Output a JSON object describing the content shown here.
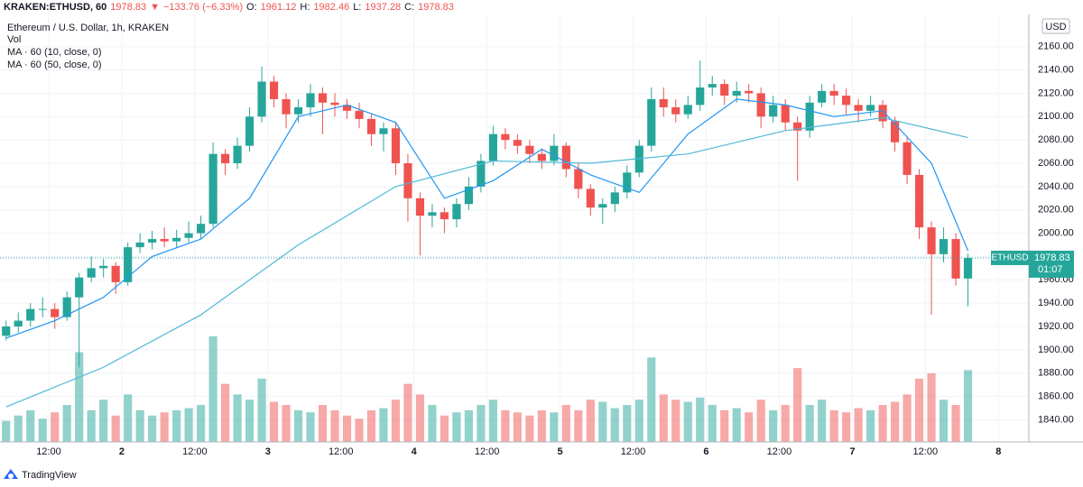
{
  "header": {
    "symbol": "KRAKEN:ETHUSD, 60",
    "arrow": "▼",
    "change": "−133.76 (−6.33%)",
    "o_label": "O:",
    "h_label": "H:",
    "l_label": "L:",
    "c_label": "C:"
  },
  "chart_data": {
    "type": "candlestick",
    "title": "Ethereum / U.S. Dollar, 1h, KRAKEN",
    "x": [
      0,
      2,
      4,
      6,
      8,
      10,
      12,
      14,
      16,
      18,
      20,
      22,
      24,
      26,
      28,
      30,
      32,
      34,
      36,
      38,
      40,
      42,
      44,
      46,
      48,
      50,
      52,
      54,
      56,
      58,
      60,
      62,
      64,
      66,
      68,
      70,
      72,
      74,
      76,
      78,
      80,
      82,
      84,
      86,
      88,
      90,
      92,
      94,
      96,
      98,
      100,
      102,
      104,
      106,
      108,
      110,
      112,
      114,
      116,
      118,
      120,
      122,
      124,
      126,
      128,
      130,
      132,
      134,
      136,
      138,
      140,
      142,
      144,
      146,
      148,
      150,
      152,
      154,
      156,
      158
    ],
    "open": [
      1912,
      1920,
      1925,
      1935,
      1935,
      1928,
      1945,
      1962,
      1970,
      1972,
      1958,
      1988,
      1992,
      1995,
      1993,
      1996,
      2000,
      2008,
      2068,
      2060,
      2075,
      2100,
      2130,
      2115,
      2102,
      2108,
      2120,
      2112,
      2110,
      2105,
      2098,
      2085,
      2090,
      2060,
      2030,
      2015,
      2018,
      2012,
      2025,
      2040,
      2062,
      2085,
      2080,
      2075,
      2068,
      2062,
      2075,
      2055,
      2038,
      2022,
      2025,
      2035,
      2052,
      2075,
      2115,
      2108,
      2102,
      2110,
      2125,
      2128,
      2118,
      2122,
      2120,
      2100,
      2110,
      2095,
      2088,
      2112,
      2122,
      2118,
      2110,
      2105,
      2110,
      2096,
      2078,
      2050,
      2005,
      1982,
      1995,
      1961.12
    ],
    "high": [
      1925,
      1932,
      1940,
      1945,
      1940,
      1950,
      1966,
      1980,
      1978,
      1975,
      1992,
      2000,
      2002,
      2005,
      2003,
      2010,
      2015,
      2078,
      2072,
      2082,
      2108,
      2143,
      2135,
      2120,
      2115,
      2128,
      2125,
      2120,
      2115,
      2112,
      2102,
      2095,
      2095,
      2068,
      2035,
      2025,
      2022,
      2030,
      2048,
      2068,
      2092,
      2090,
      2085,
      2080,
      2072,
      2085,
      2078,
      2060,
      2042,
      2030,
      2040,
      2058,
      2080,
      2125,
      2125,
      2115,
      2118,
      2148,
      2135,
      2132,
      2130,
      2128,
      2125,
      2118,
      2115,
      2100,
      2118,
      2128,
      2128,
      2124,
      2115,
      2118,
      2114,
      2100,
      2082,
      2055,
      2010,
      2005,
      2000,
      1982.46
    ],
    "low": [
      1908,
      1915,
      1920,
      1928,
      1918,
      1925,
      1885,
      1958,
      1962,
      1948,
      1955,
      1983,
      1986,
      1988,
      1988,
      1992,
      1995,
      2005,
      2050,
      2055,
      2070,
      2095,
      2108,
      2090,
      2095,
      2100,
      2085,
      2100,
      2098,
      2090,
      2075,
      2070,
      2050,
      2010,
      1981,
      2005,
      2000,
      2005,
      2020,
      2035,
      2058,
      2072,
      2068,
      2060,
      2055,
      2058,
      2048,
      2030,
      2015,
      2008,
      2018,
      2030,
      2048,
      2070,
      2100,
      2095,
      2098,
      2105,
      2118,
      2110,
      2112,
      2112,
      2090,
      2095,
      2088,
      2045,
      2082,
      2108,
      2110,
      2102,
      2095,
      2100,
      2090,
      2070,
      2042,
      1995,
      1930,
      1975,
      1955,
      1937.28
    ],
    "close": [
      1920,
      1925,
      1935,
      1935,
      1928,
      1945,
      1962,
      1970,
      1972,
      1958,
      1988,
      1992,
      1995,
      1993,
      1996,
      2000,
      2008,
      2068,
      2060,
      2075,
      2100,
      2130,
      2115,
      2102,
      2108,
      2120,
      2112,
      2110,
      2105,
      2098,
      2085,
      2090,
      2060,
      2030,
      2015,
      2018,
      2012,
      2025,
      2040,
      2062,
      2085,
      2080,
      2075,
      2068,
      2062,
      2075,
      2055,
      2038,
      2022,
      2025,
      2035,
      2052,
      2075,
      2115,
      2108,
      2102,
      2110,
      2125,
      2128,
      2118,
      2122,
      2120,
      2100,
      2110,
      2095,
      2088,
      2112,
      2122,
      2118,
      2110,
      2105,
      2110,
      2096,
      2078,
      2050,
      2005,
      1982,
      1995,
      1961.12,
      1978.83
    ],
    "up_color": "#26a69a",
    "down_color": "#ef5350",
    "volume": {
      "name": "Vol",
      "ylim": [
        0,
        400
      ],
      "values": [
        20,
        25,
        30,
        22,
        28,
        35,
        85,
        30,
        40,
        25,
        45,
        30,
        25,
        28,
        30,
        32,
        35,
        100,
        55,
        45,
        40,
        60,
        38,
        35,
        30,
        28,
        35,
        30,
        25,
        22,
        30,
        32,
        40,
        55,
        45,
        35,
        25,
        28,
        30,
        35,
        40,
        30,
        28,
        25,
        30,
        28,
        35,
        30,
        40,
        38,
        32,
        35,
        40,
        80,
        45,
        40,
        38,
        42,
        35,
        30,
        32,
        28,
        40,
        30,
        35,
        70,
        35,
        40,
        30,
        28,
        32,
        30,
        35,
        38,
        45,
        60,
        65,
        40,
        35,
        68
      ]
    },
    "moving_averages": [
      {
        "name": "MA · 60 (10, close, 0)",
        "color": "#2196f3",
        "x": [
          0,
          8,
          16,
          24,
          32,
          40,
          48,
          56,
          64,
          72,
          80,
          88,
          96,
          104,
          112,
          120,
          128,
          136,
          144,
          152,
          158
        ],
        "values": [
          1910,
          1925,
          1945,
          1980,
          1995,
          2030,
          2100,
          2110,
          2095,
          2030,
          2045,
          2072,
          2050,
          2035,
          2085,
          2115,
          2110,
          2100,
          2105,
          2060,
          1985
        ]
      },
      {
        "name": "MA · 60 (50, close, 0)",
        "color": "#4fb8d8",
        "x": [
          0,
          16,
          32,
          48,
          64,
          80,
          96,
          112,
          128,
          144,
          158
        ],
        "values": [
          1851,
          1885,
          1930,
          1990,
          2040,
          2062,
          2060,
          2068,
          2088,
          2099,
          2082
        ]
      }
    ],
    "xlim": [
      -1,
      168
    ],
    "xticks": [
      {
        "value": 7,
        "label": "12:00"
      },
      {
        "value": 19,
        "label": "2"
      },
      {
        "value": 31,
        "label": "12:00"
      },
      {
        "value": 43,
        "label": "3"
      },
      {
        "value": 55,
        "label": "12:00"
      },
      {
        "value": 67,
        "label": "4"
      },
      {
        "value": 79,
        "label": "12:00"
      },
      {
        "value": 91,
        "label": "5"
      },
      {
        "value": 103,
        "label": "12:00"
      },
      {
        "value": 115,
        "label": "6"
      },
      {
        "value": 127,
        "label": "12:00"
      },
      {
        "value": 139,
        "label": "7"
      },
      {
        "value": 151,
        "label": "12:00"
      },
      {
        "value": 163,
        "label": "8"
      }
    ],
    "ylim": [
      1821,
      2183
    ],
    "yticks": [
      {
        "value": 1840,
        "label": "1840.00"
      },
      {
        "value": 1860,
        "label": "1860.00"
      },
      {
        "value": 1880,
        "label": "1880.00"
      },
      {
        "value": 1900,
        "label": "1900.00"
      },
      {
        "value": 1920,
        "label": "1920.00"
      },
      {
        "value": 1940,
        "label": "1940.00"
      },
      {
        "value": 1960,
        "label": "1960.00"
      },
      {
        "value": 1980,
        "label": "1980.00"
      },
      {
        "value": 2000,
        "label": "2000.00"
      },
      {
        "value": 2020,
        "label": "2020.00"
      },
      {
        "value": 2040,
        "label": "2040.00"
      },
      {
        "value": 2060,
        "label": "2060.00"
      },
      {
        "value": 2080,
        "label": "2080.00"
      },
      {
        "value": 2100,
        "label": "2100.00"
      },
      {
        "value": 2120,
        "label": "2120.00"
      },
      {
        "value": 2140,
        "label": "2140.00"
      },
      {
        "value": 2160,
        "label": "2160.00"
      }
    ],
    "grid": true,
    "currency": "USD",
    "price_label": {
      "symbol": "ETHUSD",
      "countdown": "01:07"
    }
  },
  "footer": {
    "brand": "TradingView"
  }
}
